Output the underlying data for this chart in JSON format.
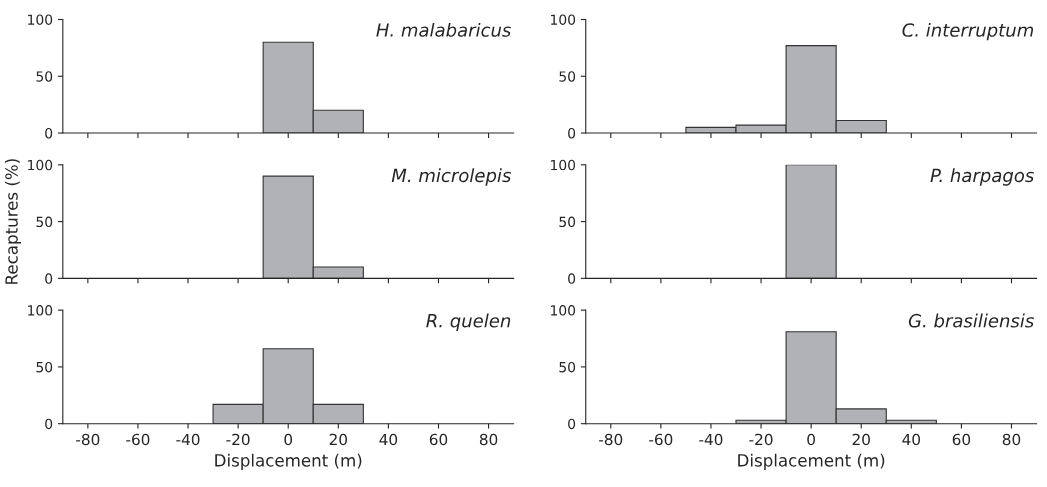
{
  "chart_data": [
    {
      "type": "histogram",
      "title": "H. malabaricus",
      "bins": [
        -90,
        -70,
        -50,
        -30,
        -10,
        10,
        30,
        50,
        70,
        90
      ],
      "values": [
        0,
        0,
        0,
        0,
        80,
        20,
        0,
        0,
        0
      ],
      "color": "#b1b2b6",
      "xlim": [
        -90,
        90
      ],
      "ylim": [
        0,
        100
      ],
      "yticks": [
        0,
        50,
        100
      ],
      "xticks": [
        -80,
        -60,
        -40,
        -20,
        0,
        20,
        40,
        60,
        80
      ],
      "tick_labels": "y"
    },
    {
      "type": "histogram",
      "title": "M. microlepis",
      "ylabel": "Recaptures (%)",
      "bins": [
        -90,
        -70,
        -50,
        -30,
        -10,
        10,
        30,
        50,
        70,
        90
      ],
      "values": [
        0,
        0,
        0,
        0,
        90,
        10,
        0,
        0,
        0
      ],
      "color": "#b1b2b6",
      "xlim": [
        -90,
        90
      ],
      "ylim": [
        0,
        100
      ],
      "yticks": [
        0,
        50,
        100
      ],
      "xticks": [
        -80,
        -60,
        -40,
        -20,
        0,
        20,
        40,
        60,
        80
      ],
      "tick_labels": "y"
    },
    {
      "type": "histogram",
      "title": "R. quelen",
      "xlabel": "Displacement (m)",
      "bins": [
        -90,
        -70,
        -50,
        -30,
        -10,
        10,
        30,
        50,
        70,
        90
      ],
      "values": [
        0,
        0,
        0,
        17,
        66,
        17,
        0,
        0,
        0
      ],
      "color": "#b1b2b6",
      "xlim": [
        -90,
        90
      ],
      "ylim": [
        0,
        100
      ],
      "yticks": [
        0,
        50,
        100
      ],
      "xticks": [
        -80,
        -60,
        -40,
        -20,
        0,
        20,
        40,
        60,
        80
      ]
    },
    {
      "type": "histogram",
      "title": "C. interruptum",
      "bins": [
        -90,
        -70,
        -50,
        -30,
        -10,
        10,
        30,
        50,
        70,
        90
      ],
      "values": [
        0,
        0,
        5,
        7,
        77,
        11,
        0,
        0,
        0
      ],
      "color": "#b1b2b6",
      "xlim": [
        -90,
        90
      ],
      "ylim": [
        0,
        100
      ],
      "yticks": [
        0,
        50,
        100
      ],
      "xticks": [
        -80,
        -60,
        -40,
        -20,
        0,
        20,
        40,
        60,
        80
      ],
      "tick_labels": "y"
    },
    {
      "type": "histogram",
      "title": "P. harpagos",
      "bins": [
        -90,
        -70,
        -50,
        -30,
        -10,
        10,
        30,
        50,
        70,
        90
      ],
      "values": [
        0,
        0,
        0,
        0,
        100,
        0,
        0,
        0,
        0
      ],
      "color": "#b1b2b6",
      "xlim": [
        -90,
        90
      ],
      "ylim": [
        0,
        100
      ],
      "yticks": [
        0,
        50,
        100
      ],
      "xticks": [
        -80,
        -60,
        -40,
        -20,
        0,
        20,
        40,
        60,
        80
      ],
      "tick_labels": "y"
    },
    {
      "type": "histogram",
      "title": "G. brasiliensis",
      "xlabel": "Displacement (m)",
      "bins": [
        -90,
        -70,
        -50,
        -30,
        -10,
        10,
        30,
        50,
        70,
        90
      ],
      "values": [
        0,
        0,
        0,
        3,
        81,
        13,
        3,
        0,
        0
      ],
      "color": "#b1b2b6",
      "xlim": [
        -90,
        90
      ],
      "ylim": [
        0,
        100
      ],
      "yticks": [
        0,
        50,
        100
      ],
      "xticks": [
        -80,
        -60,
        -40,
        -20,
        0,
        20,
        40,
        60,
        80
      ]
    }
  ]
}
